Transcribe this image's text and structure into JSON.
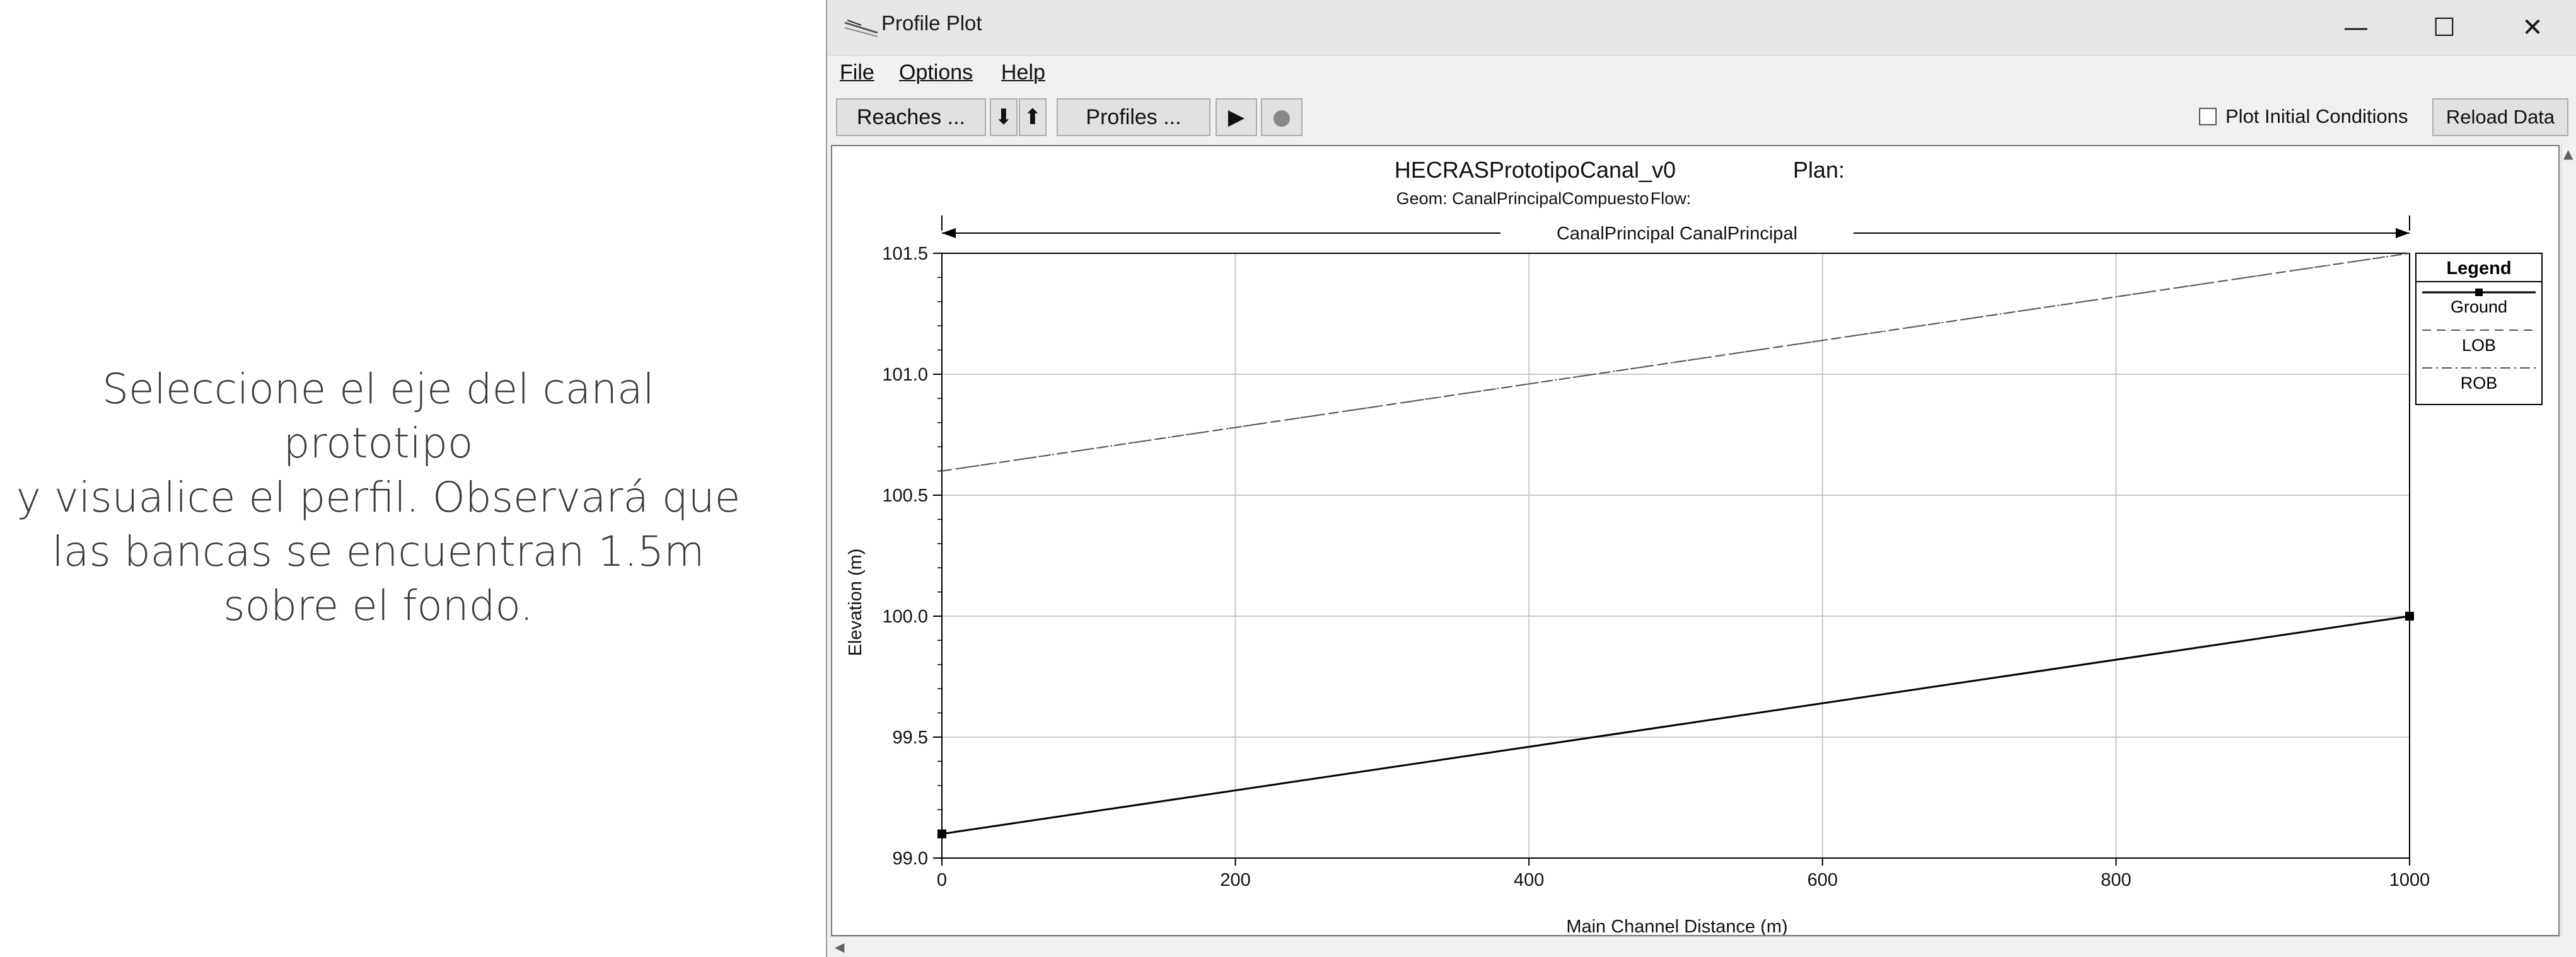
{
  "slide": {
    "caption_lines": [
      "Seleccione el eje del canal prototipo",
      "y visualice el perfil. Observará que",
      "las bancas se encuentran 1.5m",
      "sobre el fondo."
    ]
  },
  "window": {
    "title": "Profile Plot",
    "minimize_glyph": "—",
    "maximize_glyph": "☐",
    "close_glyph": "✕"
  },
  "menu": {
    "file": "File",
    "options": "Options",
    "help": "Help"
  },
  "toolbar": {
    "reaches_label": "Reaches ...",
    "down_glyph": "⬇",
    "up_glyph": "⬆",
    "profiles_label": "Profiles ...",
    "play_glyph": "▶",
    "record_glyph": "●",
    "plot_initial_conditions_label": "Plot Initial Conditions",
    "plot_initial_conditions_checked": false,
    "reload_data_label": "Reload Data"
  },
  "icons": {
    "app_icon": "profile-plot-icon",
    "minimize_icon": "minimize-icon",
    "maximize_icon": "maximize-icon",
    "close_icon": "close-icon",
    "down_icon": "arrow-down-icon",
    "up_icon": "arrow-up-icon",
    "play_icon": "play-icon",
    "record_icon": "record-icon"
  },
  "colors": {
    "ground": "#000000",
    "lob": "#555555",
    "rob": "#555555",
    "grid": "#c8c8c8"
  },
  "chart_data": {
    "type": "line",
    "title": "HECRASPrototipoCanal_v0",
    "plan_label": "Plan:",
    "geom_label": "Geom: CanalPrincipalCompuesto",
    "flow_label": "Flow:",
    "reach_label": "CanalPrincipal CanalPrincipal",
    "xlabel": "Main Channel Distance (m)",
    "ylabel": "Elevation (m)",
    "xlim": [
      0,
      1000
    ],
    "ylim": [
      99.0,
      101.5
    ],
    "xticks": [
      0,
      200,
      400,
      600,
      800,
      1000
    ],
    "xtick_labels": [
      "0",
      "200",
      "400",
      "600",
      "800",
      "1000"
    ],
    "yticks": [
      99.0,
      99.5,
      100.0,
      100.5,
      101.0,
      101.5
    ],
    "ytick_labels": [
      "99.0",
      "99.5",
      "100.0",
      "100.5",
      "101.0",
      "101.5"
    ],
    "grid": true,
    "legend_title": "Legend",
    "legend_position": "right",
    "series": [
      {
        "name": "Ground",
        "style": "solid-markers",
        "x": [
          0,
          1000
        ],
        "y": [
          99.1,
          100.0
        ]
      },
      {
        "name": "LOB",
        "style": "dashed",
        "x": [
          0,
          1000
        ],
        "y": [
          100.6,
          101.5
        ]
      },
      {
        "name": "ROB",
        "style": "dashdot",
        "x": [
          0,
          1000
        ],
        "y": [
          100.6,
          101.5
        ]
      }
    ]
  }
}
